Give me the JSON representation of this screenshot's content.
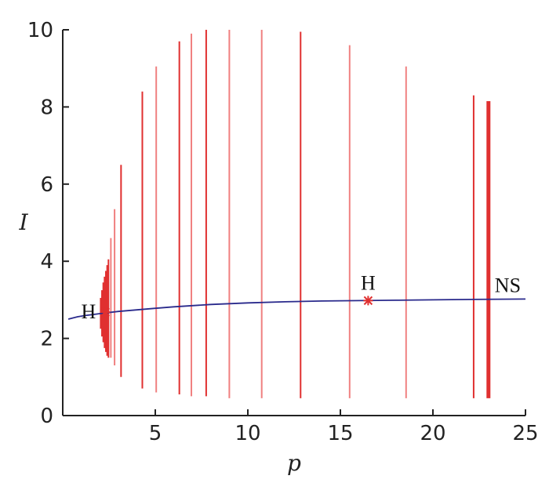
{
  "chart_data": {
    "type": "line",
    "title": "",
    "xlabel": "p",
    "ylabel": "I",
    "xlim": [
      0,
      25
    ],
    "ylim": [
      0,
      10
    ],
    "xticks": [
      5,
      10,
      15,
      20,
      25
    ],
    "yticks": [
      0,
      2,
      4,
      6,
      8,
      10
    ],
    "grid": false,
    "colors": {
      "equilibrium": "#2a2a8c",
      "bifurcation": "#e03030",
      "bifurcation_light": "#f08080",
      "marker": "#e03030"
    },
    "equilibrium_curve": {
      "x": [
        0.3,
        0.8,
        1.3,
        1.8,
        2.3,
        3,
        4,
        5,
        6,
        7,
        8,
        10,
        12,
        14,
        16,
        18,
        20,
        22,
        25
      ],
      "y": [
        2.5,
        2.56,
        2.6,
        2.63,
        2.66,
        2.7,
        2.74,
        2.78,
        2.82,
        2.85,
        2.88,
        2.92,
        2.95,
        2.97,
        2.98,
        2.99,
        3.0,
        3.01,
        3.02
      ]
    },
    "oscillation_ranges": [
      {
        "p": 2.05,
        "min": 2.25,
        "max": 3.05,
        "shade": "dark"
      },
      {
        "p": 2.12,
        "min": 2.05,
        "max": 3.25,
        "shade": "dark"
      },
      {
        "p": 2.19,
        "min": 1.9,
        "max": 3.45,
        "shade": "dark"
      },
      {
        "p": 2.26,
        "min": 1.75,
        "max": 3.6,
        "shade": "dark"
      },
      {
        "p": 2.33,
        "min": 1.65,
        "max": 3.75,
        "shade": "dark"
      },
      {
        "p": 2.4,
        "min": 1.55,
        "max": 3.9,
        "shade": "dark"
      },
      {
        "p": 2.47,
        "min": 1.5,
        "max": 4.05,
        "shade": "dark"
      },
      {
        "p": 2.6,
        "min": 1.5,
        "max": 4.6,
        "shade": "light"
      },
      {
        "p": 2.8,
        "min": 1.3,
        "max": 5.35,
        "shade": "light"
      },
      {
        "p": 3.15,
        "min": 1.0,
        "max": 6.5,
        "shade": "dark"
      },
      {
        "p": 4.3,
        "min": 0.7,
        "max": 8.4,
        "shade": "dark"
      },
      {
        "p": 5.05,
        "min": 0.6,
        "max": 9.05,
        "shade": "light"
      },
      {
        "p": 6.3,
        "min": 0.55,
        "max": 9.7,
        "shade": "dark"
      },
      {
        "p": 6.95,
        "min": 0.5,
        "max": 9.9,
        "shade": "light"
      },
      {
        "p": 7.75,
        "min": 0.5,
        "max": 10.0,
        "shade": "dark"
      },
      {
        "p": 9.0,
        "min": 0.45,
        "max": 10.0,
        "shade": "light"
      },
      {
        "p": 10.75,
        "min": 0.45,
        "max": 10.0,
        "shade": "light"
      },
      {
        "p": 12.85,
        "min": 0.45,
        "max": 9.95,
        "shade": "dark"
      },
      {
        "p": 15.5,
        "min": 0.45,
        "max": 9.6,
        "shade": "light"
      },
      {
        "p": 18.55,
        "min": 0.45,
        "max": 9.05,
        "shade": "light"
      },
      {
        "p": 22.2,
        "min": 0.45,
        "max": 8.3,
        "shade": "dark"
      },
      {
        "p": 23.0,
        "min": 0.45,
        "max": 8.15,
        "shade": "dark",
        "thick": true
      }
    ],
    "annotations": [
      {
        "label": "H",
        "x": 2.3,
        "y": 2.68,
        "marker": true
      },
      {
        "label": "H",
        "x": 16.5,
        "y": 2.98,
        "marker": true
      },
      {
        "label": "NS",
        "x": 23.0,
        "y": 3.0,
        "marker": false
      }
    ]
  }
}
